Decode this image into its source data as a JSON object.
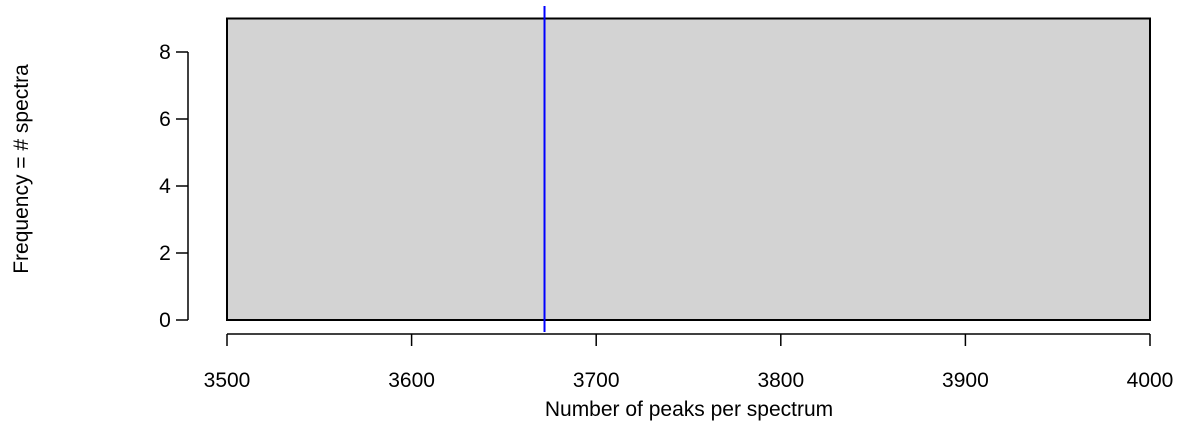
{
  "chart_data": {
    "type": "bar",
    "xlabel": "Number of peaks per spectrum",
    "ylabel": "Frequency = # spectra",
    "xlim": [
      3500,
      4000
    ],
    "ylim": [
      0,
      9
    ],
    "x_ticks": [
      3500,
      3600,
      3700,
      3800,
      3900,
      4000
    ],
    "y_ticks": [
      0,
      2,
      4,
      6,
      8
    ],
    "bins": [
      {
        "start": 3500,
        "end": 4000,
        "value": 9
      }
    ],
    "reference_line": {
      "x": 3672
    },
    "colors": {
      "bar_fill": "#d3d3d3",
      "bar_stroke": "#000000",
      "reference_line": "#0000ff"
    },
    "grid": false,
    "legend": "none"
  }
}
